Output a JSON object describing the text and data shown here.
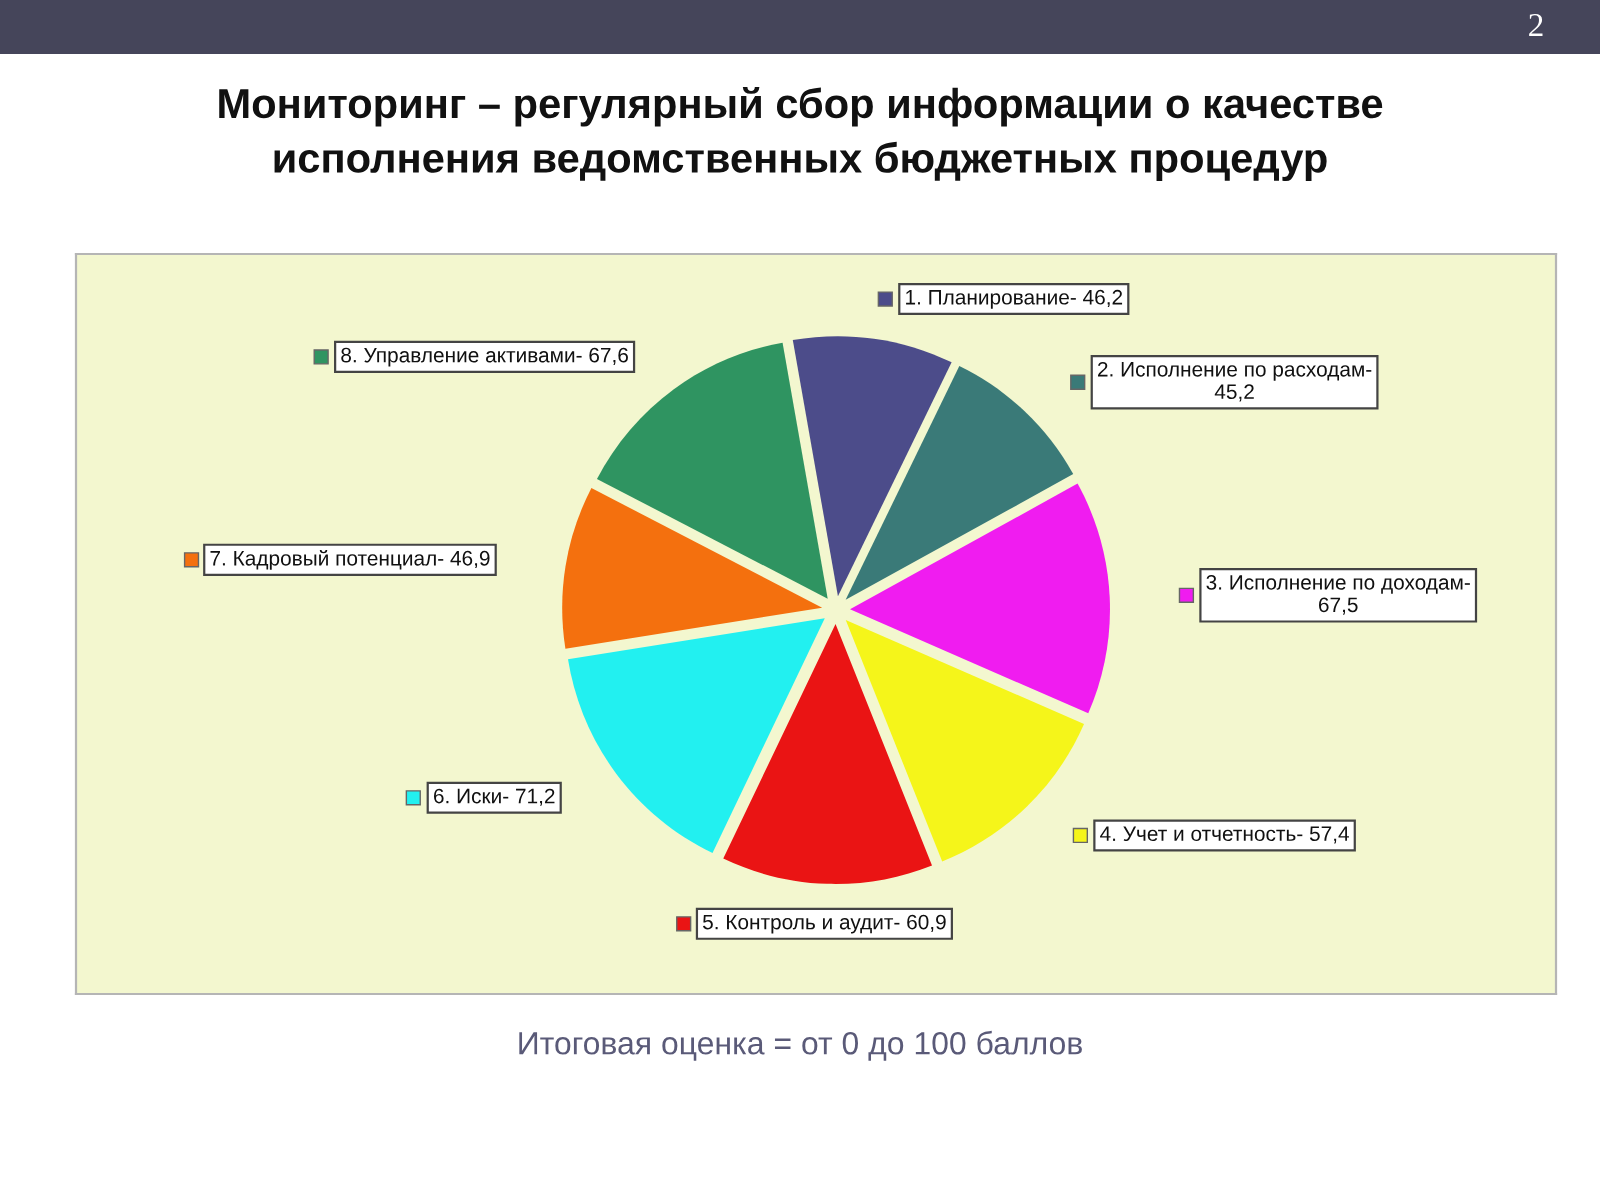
{
  "chart_data": {
    "type": "pie",
    "title": "Мониторинг – регулярный сбор информации о качестве исполнения ведомственных бюджетных процедур",
    "categories": [
      "1. Планирование-",
      "2. Исполнение по расходам-",
      "3. Исполнение по доходам-",
      "4. Учет и отчетность-",
      "5. Контроль и аудит-",
      "6. Иски-",
      "7. Кадровый потенциал-",
      "8. Управление активами-"
    ],
    "values": [
      46.2,
      45.2,
      67.5,
      57.4,
      60.9,
      71.2,
      46.9,
      67.6
    ],
    "value_labels": [
      "46,2",
      "45,2",
      "67,5",
      "57,4",
      "60,9",
      "71,2",
      "46,9",
      "67,6"
    ],
    "colors": [
      "#4c4c8a",
      "#3a7a78",
      "#f01cf0",
      "#f5f51a",
      "#ea1414",
      "#22f0f0",
      "#f4700e",
      "#2f9461"
    ],
    "legend": true,
    "annotations": [
      "Итоговая оценка = от 0 до 100 баллов",
      "2"
    ]
  }
}
